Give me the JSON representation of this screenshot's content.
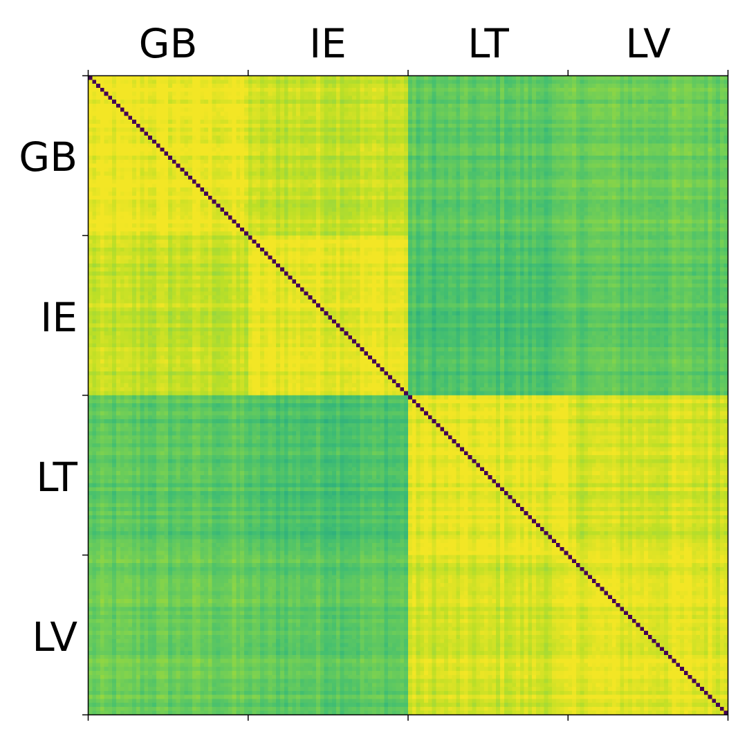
{
  "chart_data": {
    "type": "heatmap",
    "title": "",
    "xlabel": "",
    "ylabel": "",
    "groups": [
      "GB",
      "IE",
      "LT",
      "LV"
    ],
    "x_tick_labels": [
      "GB",
      "IE",
      "LT",
      "LV"
    ],
    "y_tick_labels": [
      "GB",
      "IE",
      "LT",
      "LV"
    ],
    "x_axis_position": "top",
    "items_per_group": 40,
    "colormap": "viridis",
    "value_range": [
      0,
      1
    ],
    "diagonal_value": 0.0,
    "block_mean_similarity": [
      [
        0.97,
        0.91,
        0.74,
        0.77
      ],
      [
        0.91,
        0.97,
        0.71,
        0.75
      ],
      [
        0.74,
        0.71,
        0.96,
        0.93
      ],
      [
        0.77,
        0.75,
        0.93,
        0.96
      ]
    ],
    "grid": false,
    "colorbar": false
  }
}
